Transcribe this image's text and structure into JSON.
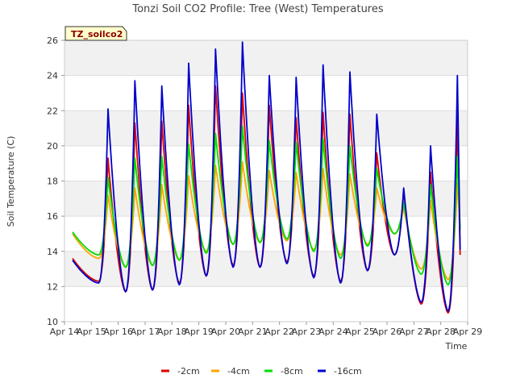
{
  "chart_data": {
    "type": "line",
    "title": "Tonzi Soil CO2 Profile: Tree (West) Temperatures",
    "xlabel": "Time",
    "ylabel": "Soil Temperature (C)",
    "tag": "TZ_soilco2",
    "ylim": [
      10,
      26
    ],
    "yticks": [
      "10",
      "12",
      "14",
      "16",
      "18",
      "20",
      "22",
      "24",
      "26"
    ],
    "xlim": [
      14,
      29
    ],
    "xticks": [
      "Apr 14",
      "Apr 15",
      "Apr 16",
      "Apr 17",
      "Apr 18",
      "Apr 19",
      "Apr 20",
      "Apr 21",
      "Apr 22",
      "Apr 23",
      "Apr 24",
      "Apr 25",
      "Apr 26",
      "Apr 27",
      "Apr 28",
      "Apr 29"
    ],
    "grid": true,
    "legend_position": "bottom",
    "day_start": 14.3,
    "days": [
      15,
      16,
      17,
      18,
      19,
      20,
      21,
      22,
      23,
      24,
      25,
      26,
      27,
      28
    ],
    "series": [
      {
        "name": "-2cm",
        "color": "#dd0000",
        "initial": 13.6,
        "min": [
          12.3,
          11.7,
          11.8,
          12.2,
          12.6,
          13.2,
          13.1,
          13.4,
          12.6,
          12.3,
          12.9,
          13.8,
          11.0,
          10.5
        ],
        "max": [
          19.3,
          21.3,
          21.4,
          22.3,
          23.4,
          23.0,
          22.3,
          21.6,
          21.9,
          21.8,
          19.6,
          17.5,
          18.5,
          21.6
        ],
        "final": 13.8
      },
      {
        "name": "-4cm",
        "color": "#ffa500",
        "initial": 15.0,
        "min": [
          13.6,
          13.1,
          13.2,
          13.5,
          14.0,
          14.4,
          14.5,
          14.6,
          14.1,
          13.8,
          14.4,
          15.0,
          13.0,
          12.4
        ],
        "max": [
          17.2,
          17.6,
          17.8,
          18.3,
          18.9,
          19.1,
          18.6,
          18.5,
          18.7,
          18.4,
          17.6,
          16.5,
          16.9,
          17.9
        ],
        "final": 15.2
      },
      {
        "name": "-8cm",
        "color": "#00dd00",
        "initial": 15.1,
        "min": [
          13.8,
          13.1,
          13.2,
          13.5,
          13.9,
          14.4,
          14.5,
          14.7,
          14.0,
          13.6,
          14.3,
          15.0,
          12.7,
          12.1
        ],
        "max": [
          18.2,
          19.3,
          19.4,
          20.1,
          20.7,
          21.1,
          20.3,
          20.2,
          20.4,
          20.0,
          18.7,
          16.8,
          17.8,
          19.4
        ],
        "final": 15.3
      },
      {
        "name": "-16cm",
        "color": "#0000cc",
        "initial": 13.5,
        "min": [
          12.2,
          11.7,
          11.8,
          12.1,
          12.6,
          13.1,
          13.1,
          13.3,
          12.5,
          12.2,
          12.9,
          13.8,
          11.1,
          10.6
        ],
        "max": [
          22.1,
          23.7,
          23.4,
          24.7,
          25.5,
          25.9,
          24.0,
          23.9,
          24.6,
          24.2,
          21.8,
          17.6,
          20.0,
          24.0
        ],
        "final": 14.1
      }
    ]
  }
}
